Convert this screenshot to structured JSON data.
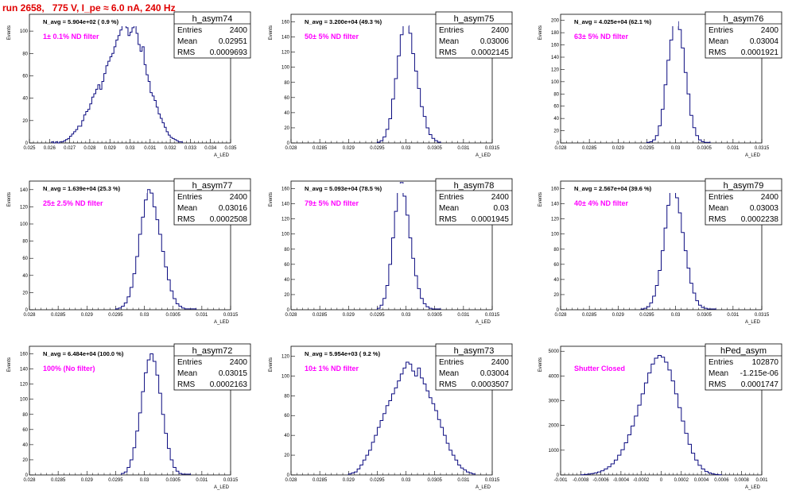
{
  "page": {
    "title": "run 2658,   775 V, I_pe ≈ 6.0 nA, 240 Hz"
  },
  "chart_data": [
    {
      "type": "bar",
      "name": "h_asym74",
      "navg": "N_avg = 5.904e+02 ( 0.9 %)",
      "filter": "1± 0.1% ND filter",
      "stats": [
        [
          "Entries",
          "2400"
        ],
        [
          "Mean",
          "0.02951"
        ],
        [
          "RMS",
          "0.0009693"
        ]
      ],
      "xlabel": "A_LED",
      "ylabel": "Events",
      "xlim": [
        0.025,
        0.035
      ],
      "ylim": [
        0,
        115
      ],
      "xticks": [
        "0.025",
        "0.026",
        "0.027",
        "0.028",
        "0.029",
        "0.03",
        "0.031",
        "0.032",
        "0.033",
        "0.034",
        "0.035"
      ],
      "yticks": [
        0,
        20,
        40,
        60,
        80,
        100
      ],
      "bin_edges": [
        0.0261,
        0.0326
      ],
      "values": [
        1,
        0,
        1,
        0,
        1,
        1,
        2,
        3,
        4,
        6,
        8,
        10,
        12,
        15,
        15,
        20,
        25,
        28,
        30,
        35,
        41,
        44,
        48,
        52,
        48,
        55,
        62,
        69,
        73,
        77,
        80,
        86,
        92,
        96,
        101,
        108,
        107,
        103,
        96,
        99,
        103,
        105,
        98,
        88,
        82,
        86,
        70,
        61,
        55,
        45,
        42,
        38,
        32,
        26,
        22,
        18,
        14,
        10,
        7,
        5,
        4,
        3,
        2,
        1,
        1
      ]
    },
    {
      "type": "bar",
      "name": "h_asym75",
      "navg": "N_avg = 3.200e+04 (49.3 %)",
      "filter": "50± 5% ND filter",
      "stats": [
        [
          "Entries",
          "2400"
        ],
        [
          "Mean",
          "0.03006"
        ],
        [
          "RMS",
          "0.0002145"
        ]
      ],
      "xlabel": "A_LED",
      "ylabel": "Events",
      "xlim": [
        0.028,
        0.0315
      ],
      "ylim": [
        0,
        170
      ],
      "xticks": [
        "0.028",
        "0.0285",
        "0.029",
        "0.0295",
        "0.03",
        "0.0305",
        "0.031",
        "0.0315"
      ],
      "yticks": [
        0,
        20,
        40,
        60,
        80,
        100,
        120,
        140,
        160
      ],
      "bin_edges": [
        0.0295,
        0.0306
      ],
      "values": [
        1,
        3,
        8,
        18,
        32,
        58,
        85,
        115,
        143,
        160,
        155,
        145,
        118,
        95,
        72,
        48,
        35,
        20,
        11,
        6,
        3,
        1
      ]
    },
    {
      "type": "bar",
      "name": "h_asym76",
      "navg": "N_avg = 4.025e+04 (62.1 %)",
      "filter": "63± 5% ND filter",
      "stats": [
        [
          "Entries",
          "2400"
        ],
        [
          "Mean",
          "0.03004"
        ],
        [
          "RMS",
          "0.0001921"
        ]
      ],
      "xlabel": "A_LED",
      "ylabel": "Events",
      "xlim": [
        0.028,
        0.0315
      ],
      "ylim": [
        0,
        210
      ],
      "xticks": [
        "0.028",
        "0.0285",
        "0.029",
        "0.0295",
        "0.03",
        "0.0305",
        "0.031",
        "0.0315"
      ],
      "yticks": [
        0,
        20,
        40,
        60,
        80,
        100,
        120,
        140,
        160,
        180,
        200
      ],
      "bin_edges": [
        0.0295,
        0.0306
      ],
      "values": [
        1,
        2,
        5,
        12,
        28,
        55,
        95,
        135,
        168,
        195,
        198,
        185,
        155,
        115,
        80,
        45,
        25,
        12,
        5,
        2,
        1,
        1
      ]
    },
    {
      "type": "bar",
      "name": "h_asym77",
      "navg": "N_avg = 1.639e+04 (25.3 %)",
      "filter": "25± 2.5% ND filter",
      "stats": [
        [
          "Entries",
          "2400"
        ],
        [
          "Mean",
          "0.03016"
        ],
        [
          "RMS",
          "0.0002508"
        ]
      ],
      "xlabel": "A_LED",
      "ylabel": "Events",
      "xlim": [
        0.028,
        0.0315
      ],
      "ylim": [
        0,
        150
      ],
      "xticks": [
        "0.028",
        "0.0285",
        "0.029",
        "0.0295",
        "0.03",
        "0.0305",
        "0.031",
        "0.0315"
      ],
      "yticks": [
        0,
        20,
        40,
        60,
        80,
        100,
        120,
        140
      ],
      "bin_edges": [
        0.0295,
        0.0309
      ],
      "values": [
        1,
        2,
        4,
        8,
        15,
        26,
        42,
        62,
        88,
        108,
        128,
        140,
        136,
        120,
        105,
        88,
        68,
        50,
        35,
        22,
        13,
        7,
        4,
        2,
        1,
        1,
        1,
        1
      ]
    },
    {
      "type": "bar",
      "name": "h_asym78",
      "navg": "N_avg = 5.093e+04 (78.5 %)",
      "filter": "79± 5% ND filter",
      "stats": [
        [
          "Entries",
          "2400"
        ],
        [
          "Mean",
          "0.03"
        ],
        [
          "RMS",
          "0.0001945"
        ]
      ],
      "xlabel": "A_LED",
      "ylabel": "Events",
      "xlim": [
        0.028,
        0.0315
      ],
      "ylim": [
        0,
        170
      ],
      "xticks": [
        "0.028",
        "0.0285",
        "0.029",
        "0.0295",
        "0.03",
        "0.0305",
        "0.031",
        "0.0315"
      ],
      "yticks": [
        0,
        20,
        40,
        60,
        80,
        100,
        120,
        140,
        160
      ],
      "bin_edges": [
        0.0295,
        0.0306
      ],
      "values": [
        2,
        6,
        15,
        32,
        60,
        95,
        130,
        158,
        168,
        150,
        125,
        95,
        68,
        45,
        28,
        15,
        8,
        4,
        2,
        1,
        1,
        1
      ]
    },
    {
      "type": "bar",
      "name": "h_asym79",
      "navg": "N_avg = 2.567e+04 (39.6 %)",
      "filter": "40± 4% ND filter",
      "stats": [
        [
          "Entries",
          "2400"
        ],
        [
          "Mean",
          "0.03003"
        ],
        [
          "RMS",
          "0.0002238"
        ]
      ],
      "xlabel": "A_LED",
      "ylabel": "Events",
      "xlim": [
        0.028,
        0.0315
      ],
      "ylim": [
        0,
        170
      ],
      "xticks": [
        "0.028",
        "0.0285",
        "0.029",
        "0.0295",
        "0.03",
        "0.0305",
        "0.031",
        "0.0315"
      ],
      "yticks": [
        0,
        20,
        40,
        60,
        80,
        100,
        120,
        140,
        160
      ],
      "bin_edges": [
        0.0294,
        0.0307
      ],
      "values": [
        1,
        2,
        4,
        9,
        18,
        32,
        52,
        78,
        108,
        138,
        155,
        160,
        148,
        128,
        102,
        78,
        55,
        35,
        22,
        12,
        6,
        3,
        2,
        1,
        1,
        1
      ]
    },
    {
      "type": "bar",
      "name": "h_asym72",
      "navg": "N_avg = 6.484e+04 (100.0 %)",
      "filter": "100% (No filter)",
      "stats": [
        [
          "Entries",
          "2400"
        ],
        [
          "Mean",
          "0.03015"
        ],
        [
          "RMS",
          "0.0002163"
        ]
      ],
      "xlabel": "A_LED",
      "ylabel": "Events",
      "xlim": [
        0.028,
        0.0315
      ],
      "ylim": [
        0,
        170
      ],
      "xticks": [
        "0.028",
        "0.0285",
        "0.029",
        "0.0295",
        "0.03",
        "0.0305",
        "0.031",
        "0.0315"
      ],
      "yticks": [
        0,
        20,
        40,
        60,
        80,
        100,
        120,
        140,
        160
      ],
      "bin_edges": [
        0.0296,
        0.0308
      ],
      "values": [
        2,
        4,
        10,
        20,
        36,
        58,
        82,
        110,
        135,
        152,
        160,
        150,
        132,
        108,
        80,
        55,
        35,
        20,
        10,
        5,
        2,
        1,
        1,
        1
      ]
    },
    {
      "type": "bar",
      "name": "h_asym73",
      "navg": "N_avg = 5.954e+03 ( 9.2 %)",
      "filter": "10± 1% ND filter",
      "stats": [
        [
          "Entries",
          "2400"
        ],
        [
          "Mean",
          "0.03004"
        ],
        [
          "RMS",
          "0.0003507"
        ]
      ],
      "xlabel": "A_LED",
      "ylabel": "Events",
      "xlim": [
        0.028,
        0.0315
      ],
      "ylim": [
        0,
        130
      ],
      "xticks": [
        "0.028",
        "0.0285",
        "0.029",
        "0.0295",
        "0.03",
        "0.0305",
        "0.031",
        "0.0315"
      ],
      "yticks": [
        0,
        20,
        40,
        60,
        80,
        100,
        120
      ],
      "bin_edges": [
        0.029,
        0.0312
      ],
      "values": [
        1,
        2,
        3,
        6,
        10,
        15,
        20,
        25,
        33,
        40,
        48,
        55,
        62,
        70,
        75,
        82,
        88,
        95,
        102,
        108,
        114,
        112,
        105,
        100,
        108,
        98,
        92,
        85,
        78,
        72,
        65,
        56,
        48,
        40,
        32,
        25,
        20,
        15,
        10,
        7,
        5,
        3,
        2,
        1
      ]
    },
    {
      "type": "bar",
      "name": "hPed_asym",
      "navg": "",
      "filter": "Shutter Closed",
      "stats": [
        [
          "Entries",
          "102870"
        ],
        [
          "Mean",
          "-1.215e-06"
        ],
        [
          "RMS",
          "0.0001747"
        ]
      ],
      "xlabel": "A_LED",
      "ylabel": "Events",
      "xlim": [
        -0.001,
        0.001
      ],
      "ylim": [
        0,
        5200
      ],
      "xticks": [
        "-0.001",
        "-0.0008",
        "-0.0006",
        "-0.0004",
        "-0.0002",
        "0",
        "0.0002",
        "0.0004",
        "0.0006",
        "0.0008",
        "0.001"
      ],
      "yticks": [
        0,
        1000,
        2000,
        3000,
        4000,
        5000
      ],
      "bin_edges": [
        -0.0008,
        0.0006
      ],
      "values": [
        10,
        20,
        35,
        55,
        80,
        120,
        170,
        240,
        330,
        450,
        600,
        800,
        1020,
        1300,
        1620,
        1980,
        2380,
        2820,
        3280,
        3720,
        4120,
        4480,
        4720,
        4830,
        4760,
        4560,
        4240,
        3800,
        3280,
        2720,
        2180,
        1680,
        1240,
        880,
        600,
        390,
        240,
        140,
        80,
        40,
        20,
        10
      ]
    }
  ]
}
